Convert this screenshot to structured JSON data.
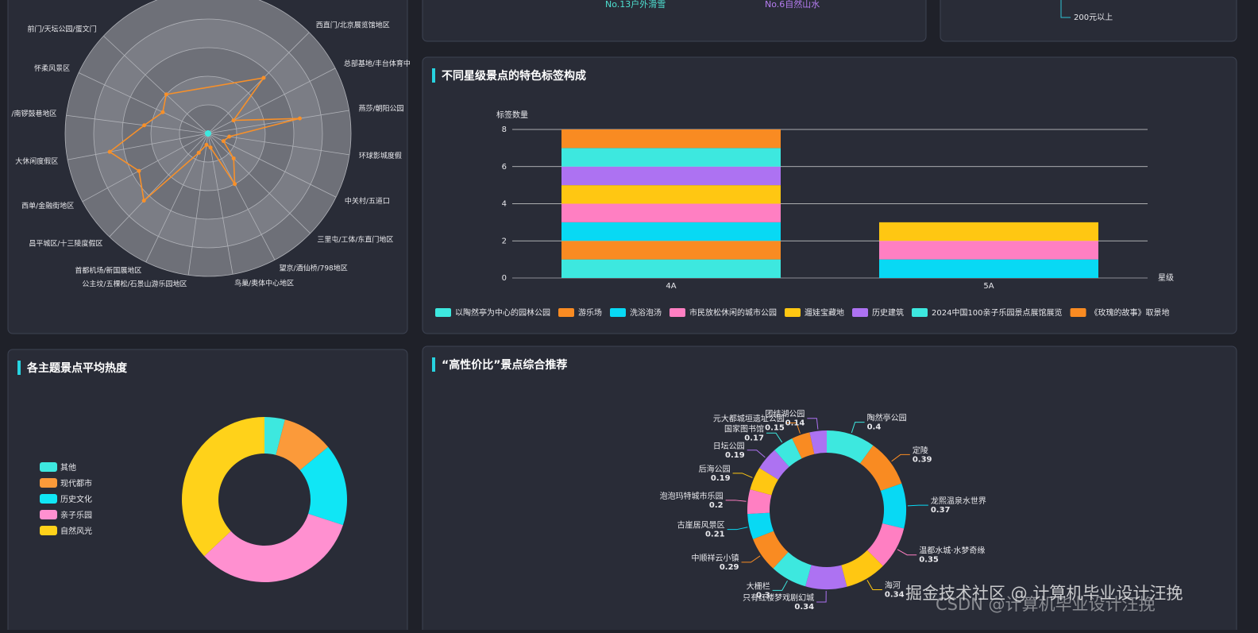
{
  "chart_data": [
    {
      "type": "radar",
      "indicators": [
        "西直门/北京展览馆地区",
        "总部基地/丰台体育中",
        "燕莎/朝阳公园",
        "环球影城度假",
        "中关村/五道口",
        "三里屯/工体/东直门地区",
        "望京/酒仙桥/798地区",
        "鸟巢/奥体中心地区",
        "公主坟/五棵松/石景山游乐园地区",
        "首都机场/新国展地区",
        "昌平城区/十三陵度假区",
        "西单/金融街地区",
        "大休闲度假区",
        "/南锣鼓巷地区",
        "怀柔风景区",
        "前门/天坛公园/蛋文门"
      ],
      "values": [
        55,
        20,
        65,
        15,
        12,
        25,
        40,
        10,
        8,
        15,
        65,
        55,
        70,
        45,
        35,
        40
      ],
      "rlim": [
        0,
        100
      ],
      "color": "#f7902a"
    },
    {
      "type": "bar",
      "stacked": true,
      "title": "不同星级景点的特色标签构成",
      "y_label": "标签数量",
      "x_label": "星级",
      "categories": [
        "4A",
        "5A"
      ],
      "ylim": [
        0,
        8
      ],
      "yticks": [
        0,
        2,
        4,
        6,
        8
      ],
      "grid": true,
      "series": [
        {
          "name": "以陶然亭为中心的园林公园",
          "color": "#3de8df",
          "values": [
            1,
            0
          ]
        },
        {
          "name": "游乐场",
          "color": "#f98b22",
          "values": [
            1,
            0
          ]
        },
        {
          "name": "洗浴泡汤",
          "color": "#08d9f4",
          "values": [
            1,
            1
          ]
        },
        {
          "name": "市民放松休闲的城市公园",
          "color": "#ff7fc2",
          "values": [
            1,
            1
          ]
        },
        {
          "name": "遛娃宝藏地",
          "color": "#ffc712",
          "values": [
            1,
            1
          ]
        },
        {
          "name": "历史建筑",
          "color": "#ad72f2",
          "values": [
            1,
            0
          ]
        },
        {
          "name": "2024中国100亲子乐园景点展馆展览",
          "color": "#3de8df",
          "values": [
            1,
            0
          ]
        },
        {
          "name": "《玫瑰的故事》取景地",
          "color": "#f98b22",
          "values": [
            1,
            0
          ]
        }
      ]
    },
    {
      "type": "pie",
      "donut": true,
      "title": "各主题景点平均热度",
      "legend": "left",
      "categories": [
        "其他",
        "现代都市",
        "历史文化",
        "亲子乐园",
        "自然风光"
      ],
      "values": [
        4,
        10,
        16,
        33,
        37
      ],
      "colors": [
        "#3de8df",
        "#fb9a3a",
        "#10e6f5",
        "#ff90d0",
        "#ffd21a"
      ]
    },
    {
      "type": "pie",
      "donut": true,
      "title": "“高性价比”景点综合推荐",
      "categories": [
        "陶然亭公园",
        "定陵",
        "龙熙温泉水世界",
        "温都水城·水梦奇缘",
        "海河",
        "只有红楼梦戏剧幻城",
        "大栅栏",
        "中顺祥云小镇",
        "古崖居风景区",
        "泡泡玛特城市乐园",
        "后海公园",
        "日坛公园",
        "国家图书馆",
        "元大都城垣遗址公园",
        "团结湖公园"
      ],
      "values": [
        0.4,
        0.39,
        0.37,
        0.35,
        0.34,
        0.34,
        0.3,
        0.29,
        0.21,
        0.2,
        0.19,
        0.19,
        0.17,
        0.15,
        0.14
      ],
      "colors": [
        "#3de8df",
        "#f98b22",
        "#08d9f4",
        "#ff7fc2",
        "#ffc712",
        "#ad72f2",
        "#3de8df",
        "#f98b22",
        "#08d9f4",
        "#ff7fc2",
        "#ffc712",
        "#ad72f2",
        "#3de8df",
        "#f98b22",
        "#ad72f2"
      ]
    }
  ],
  "top_panels": {
    "left": [
      "No.13户外滑雪",
      "No.6自然山水"
    ],
    "right": "200元以上"
  },
  "watermark": [
    "掘金技术社区 @ 计算机毕业设计汪挽",
    "CSDN @计算机毕业设计汪挽"
  ]
}
